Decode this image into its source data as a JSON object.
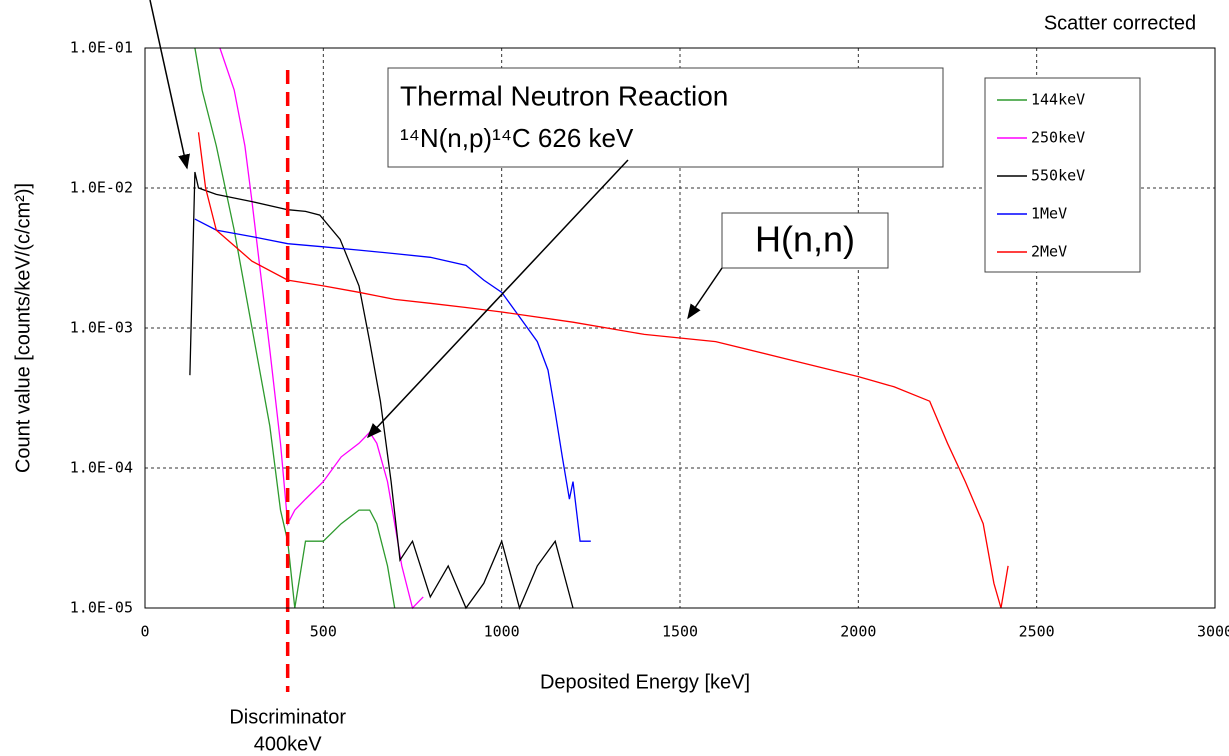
{
  "chart_data": {
    "type": "line",
    "annotations": {
      "corner": "Scatter corrected",
      "reaction_title": "Thermal Neutron Reaction",
      "reaction": "¹⁴N(n,p)¹⁴C  626 keV",
      "hnn": "H(n,n)"
    },
    "discriminator": {
      "x": 400,
      "label": "Discriminator",
      "sublabel": "400keV",
      "color": "#ff0000"
    },
    "xlabel": "Deposited Energy [keV]",
    "ylabel": "Count value [counts/keV/(c/cm²)]",
    "xlim": [
      0,
      3000
    ],
    "xticks": [
      0,
      500,
      1000,
      1500,
      2000,
      2500,
      3000
    ],
    "ylim": [
      1e-05,
      0.1
    ],
    "log_y": true,
    "grid": true,
    "legend": "upper right",
    "yticks": [
      {
        "value": 1e-05,
        "label": "1.0E-05"
      },
      {
        "value": 0.0001,
        "label": "1.0E-04"
      },
      {
        "value": 0.001,
        "label": "1.0E-03"
      },
      {
        "value": 0.01,
        "label": "1.0E-02"
      },
      {
        "value": 0.1,
        "label": "1.0E-01"
      }
    ],
    "series": [
      {
        "name": "144keV",
        "color": "#2e9a2e",
        "x": [
          140,
          160,
          200,
          250,
          300,
          350,
          380,
          400,
          420,
          450,
          500,
          550,
          600,
          630,
          650,
          680,
          700
        ],
        "values": [
          0.1,
          0.05,
          0.02,
          0.005,
          0.001,
          0.0002,
          5e-05,
          3e-05,
          1e-05,
          3e-05,
          3e-05,
          4e-05,
          5e-05,
          5e-05,
          4e-05,
          2e-05,
          1e-05
        ]
      },
      {
        "name": "250keV",
        "color": "#ff00ff",
        "x": [
          210,
          250,
          280,
          300,
          320,
          350,
          380,
          400,
          420,
          450,
          500,
          550,
          600,
          630,
          650,
          680,
          700,
          720,
          750,
          780
        ],
        "values": [
          0.1,
          0.05,
          0.02,
          0.008,
          0.003,
          0.0007,
          0.00015,
          4e-05,
          5e-05,
          6e-05,
          8e-05,
          0.00012,
          0.00015,
          0.00018,
          0.00015,
          8e-05,
          4e-05,
          2e-05,
          1e-05,
          1.2e-05
        ]
      },
      {
        "name": "550keV",
        "color": "#000000",
        "x": [
          126,
          140,
          150,
          200,
          300,
          400,
          450,
          490,
          547,
          600,
          630,
          660,
          690,
          715,
          750,
          800,
          850,
          900,
          950,
          1000,
          1050,
          1100,
          1150,
          1200
        ],
        "values": [
          0.00046,
          0.013,
          0.01,
          0.009,
          0.008,
          0.007,
          0.0068,
          0.0064,
          0.0043,
          0.002,
          0.0008,
          0.0003,
          8e-05,
          2.2e-05,
          3e-05,
          1.2e-05,
          2e-05,
          1e-05,
          1.5e-05,
          3e-05,
          1e-05,
          2e-05,
          3e-05,
          1e-05
        ]
      },
      {
        "name": "1MeV",
        "color": "#0000ff",
        "x": [
          140,
          200,
          300,
          400,
          500,
          600,
          700,
          800,
          900,
          950,
          1000,
          1050,
          1100,
          1130,
          1150,
          1170,
          1190,
          1200,
          1220,
          1250
        ],
        "values": [
          0.006,
          0.005,
          0.0045,
          0.004,
          0.0038,
          0.0036,
          0.0034,
          0.0032,
          0.0028,
          0.0022,
          0.0018,
          0.0012,
          0.0008,
          0.0005,
          0.00025,
          0.00012,
          6e-05,
          8e-05,
          3e-05,
          3e-05
        ]
      },
      {
        "name": "2MeV",
        "color": "#ff0000",
        "x": [
          150,
          170,
          200,
          300,
          400,
          500,
          600,
          700,
          800,
          900,
          1000,
          1200,
          1400,
          1600,
          1800,
          2000,
          2100,
          2200,
          2250,
          2300,
          2350,
          2380,
          2400,
          2420
        ],
        "values": [
          0.025,
          0.01,
          0.005,
          0.003,
          0.0022,
          0.002,
          0.0018,
          0.0016,
          0.0015,
          0.0014,
          0.0013,
          0.0011,
          0.0009,
          0.0008,
          0.0006,
          0.00045,
          0.00038,
          0.0003,
          0.00015,
          8e-05,
          4e-05,
          1.5e-05,
          1e-05,
          2e-05
        ]
      }
    ]
  }
}
